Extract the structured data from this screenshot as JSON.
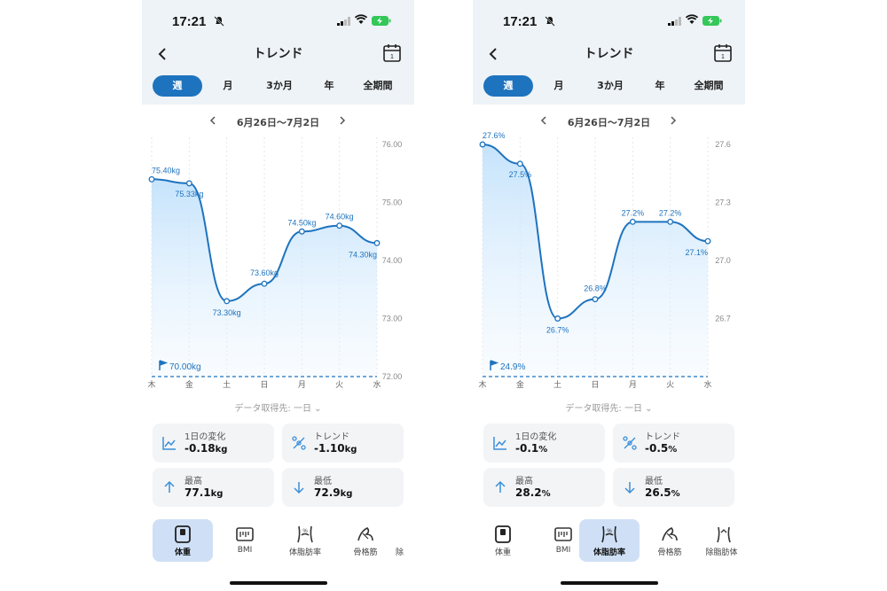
{
  "screens": [
    {
      "time": "17:21",
      "nav": {
        "title": "トレンド"
      },
      "tabs": [
        {
          "label": "週",
          "active": true
        },
        {
          "label": "月",
          "active": false
        },
        {
          "label": "3か月",
          "active": false
        },
        {
          "label": "年",
          "active": false
        },
        {
          "label": "全期間",
          "active": false
        }
      ],
      "date_range": "6月26日〜7月2日",
      "chart_data": {
        "type": "line",
        "categories": [
          "木",
          "金",
          "土",
          "日",
          "月",
          "火",
          "水"
        ],
        "values": [
          75.4,
          75.33,
          73.3,
          73.6,
          74.5,
          74.6,
          74.3
        ],
        "point_labels": [
          "75.40kg",
          "75.33kg",
          "73.30kg",
          "73.60kg",
          "74.50kg",
          "74.60kg",
          "74.30kg"
        ],
        "y_ticks": [
          "76.00",
          "75.00",
          "74.00",
          "73.00",
          "72.00"
        ],
        "y_tick_values": [
          76,
          75,
          74,
          73,
          72
        ],
        "ylim": [
          72,
          76
        ],
        "goal_value": 70.0,
        "goal_label": "70.00kg",
        "color": "#1e73be"
      },
      "source_label": "データ取得先: 一日",
      "cards": [
        {
          "title": "1日の変化",
          "value": "-0.18",
          "unit": "kg",
          "icon": "line-chart-icon"
        },
        {
          "title": "トレンド",
          "value": "-1.10",
          "unit": "kg",
          "icon": "trend-icon"
        },
        {
          "title": "最高",
          "value": "77.1",
          "unit": "kg",
          "icon": "arrow-up-icon"
        },
        {
          "title": "最低",
          "value": "72.9",
          "unit": "kg",
          "icon": "arrow-down-icon"
        }
      ],
      "bottom_nav": [
        {
          "label": "体重",
          "active": true
        },
        {
          "label": "BMI",
          "active": false
        },
        {
          "label": "体脂肪率",
          "active": false
        },
        {
          "label": "骨格筋",
          "active": false
        },
        {
          "label": "除",
          "active": false
        }
      ]
    },
    {
      "time": "17:21",
      "nav": {
        "title": "トレンド"
      },
      "tabs": [
        {
          "label": "週",
          "active": true
        },
        {
          "label": "月",
          "active": false
        },
        {
          "label": "3か月",
          "active": false
        },
        {
          "label": "年",
          "active": false
        },
        {
          "label": "全期間",
          "active": false
        }
      ],
      "date_range": "6月26日〜7月2日",
      "chart_data": {
        "type": "line",
        "categories": [
          "木",
          "金",
          "土",
          "日",
          "月",
          "火",
          "水"
        ],
        "values": [
          27.6,
          27.5,
          26.7,
          26.8,
          27.2,
          27.2,
          27.1
        ],
        "point_labels": [
          "27.6%",
          "27.5%",
          "26.7%",
          "26.8%",
          "27.2%",
          "27.2%",
          "27.1%"
        ],
        "y_ticks": [
          "27.6",
          "27.3",
          "27.0",
          "26.7"
        ],
        "y_tick_values": [
          27.6,
          27.3,
          27.0,
          26.7
        ],
        "ylim": [
          26.4,
          27.6
        ],
        "goal_value": 24.9,
        "goal_label": "24.9%",
        "color": "#1e73be"
      },
      "source_label": "データ取得先: 一日",
      "cards": [
        {
          "title": "1日の変化",
          "value": "-0.1",
          "unit": "%",
          "icon": "line-chart-icon"
        },
        {
          "title": "トレンド",
          "value": "-0.5",
          "unit": "%",
          "icon": "trend-icon"
        },
        {
          "title": "最高",
          "value": "28.2",
          "unit": "%",
          "icon": "arrow-up-icon"
        },
        {
          "title": "最低",
          "value": "26.5",
          "unit": "%",
          "icon": "arrow-down-icon"
        }
      ],
      "bottom_nav": [
        {
          "label": "体重",
          "active": false
        },
        {
          "label": "BMI",
          "active": false
        },
        {
          "label": "体脂肪率",
          "active": true
        },
        {
          "label": "骨格筋",
          "active": false
        },
        {
          "label": "除脂肪体",
          "active": false
        }
      ]
    }
  ]
}
